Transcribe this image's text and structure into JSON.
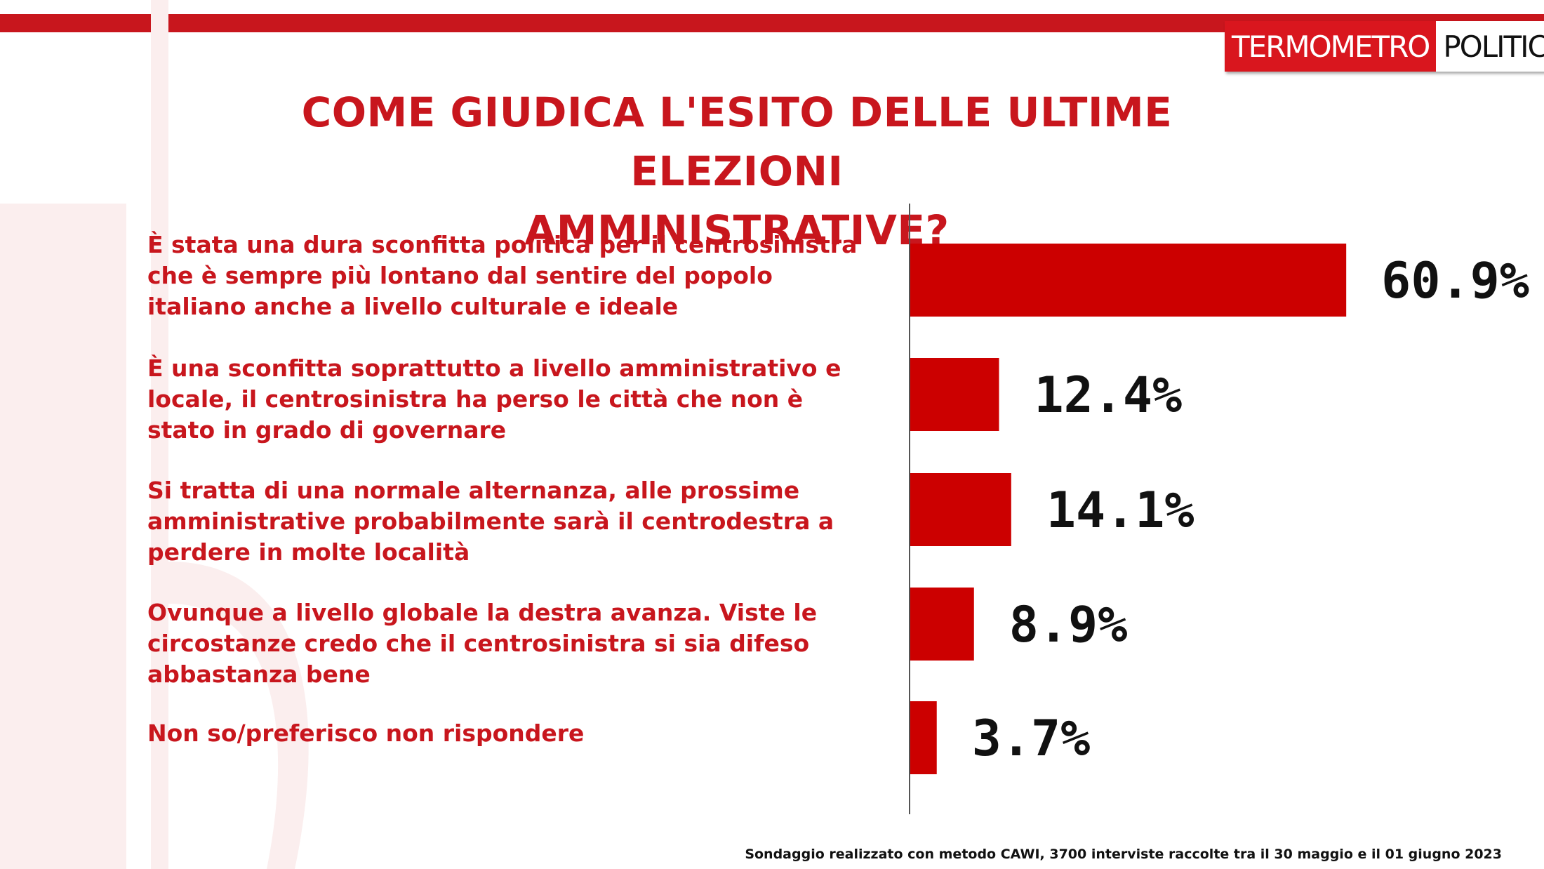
{
  "logo": {
    "part1": "TERMOMETRO",
    "part2": "POLITICO"
  },
  "title_line1": "COME GIUDICA L'ESITO DELLE ULTIME ELEZIONI",
  "title_line2": "AMMINISTRATIVE?",
  "chart_data": {
    "type": "bar",
    "orientation": "horizontal",
    "title": "COME GIUDICA L'ESITO DELLE ULTIME ELEZIONI AMMINISTRATIVE?",
    "categories": [
      "È stata una dura sconfitta politica per il centrosinistra che è sempre più lontano dal sentire del popolo italiano anche a livello culturale e ideale",
      "È una sconfitta soprattutto a livello amministrativo e locale, il centrosinistra ha perso le città  che non è stato in grado di governare",
      "Si tratta di una normale alternanza, alle prossime amministrative probabilmente sarà il centrodestra a perdere in molte località",
      "Ovunque a livello globale la destra avanza. Viste le circostanze credo che il centrosinistra si sia difeso abbastanza bene",
      "Non so/preferisco non rispondere"
    ],
    "answer_lines": [
      [
        "È stata una dura sconfitta politica per il centrosinistra",
        "che è sempre più lontano dal sentire del popolo",
        "italiano anche a livello culturale e ideale"
      ],
      [
        "È una sconfitta soprattutto a livello amministrativo e",
        "locale, il centrosinistra ha perso le città  che non è",
        "stato in grado di governare"
      ],
      [
        "Si tratta di una normale alternanza, alle prossime",
        "amministrative probabilmente sarà il centrodestra a",
        "perdere in molte località"
      ],
      [
        "Ovunque a livello globale la destra avanza. Viste le",
        "circostanze credo che il centrosinistra si sia difeso",
        "abbastanza bene"
      ],
      [
        "Non so/preferisco non rispondere"
      ]
    ],
    "values": [
      60.9,
      12.4,
      14.1,
      8.9,
      3.7
    ],
    "value_labels": [
      "60.9%",
      "12.4%",
      "14.1%",
      "8.9%",
      "3.7%"
    ],
    "unit": "%",
    "xlim": [
      0,
      100
    ],
    "grid": false,
    "legend": "none",
    "bar_color": "#cc0000"
  },
  "footer": "Sondaggio realizzato con metodo CAWI, 3700 interviste raccolte tra il 30 maggio e il 01 giugno 2023",
  "colors": {
    "accent": "#c8161d",
    "bar": "#cc0000",
    "label": "#111111"
  }
}
